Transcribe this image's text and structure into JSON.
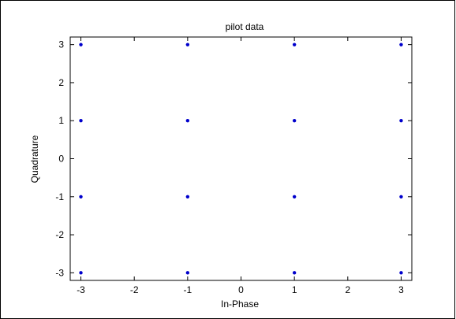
{
  "chart_data": {
    "type": "scatter",
    "title": "pilot data",
    "xlabel": "In-Phase",
    "ylabel": "Quadrature",
    "xlim": [
      -3.2,
      3.2
    ],
    "ylim": [
      -3.2,
      3.2
    ],
    "xticks": [
      -3,
      -2,
      -1,
      0,
      1,
      2,
      3
    ],
    "yticks": [
      -3,
      -2,
      -1,
      0,
      1,
      2,
      3
    ],
    "xtick_labels": [
      "-3",
      "-2",
      "-1",
      "0",
      "1",
      "2",
      "3"
    ],
    "ytick_labels": [
      "-3",
      "-2",
      "-1",
      "0",
      "1",
      "2",
      "3"
    ],
    "grid": false,
    "legend": "none",
    "marker": "dot",
    "series": [
      {
        "color": "#0000cc",
        "points": [
          {
            "x": -3,
            "y": 3
          },
          {
            "x": -1,
            "y": 3
          },
          {
            "x": 1,
            "y": 3
          },
          {
            "x": 3,
            "y": 3
          },
          {
            "x": -3,
            "y": 1
          },
          {
            "x": -1,
            "y": 1
          },
          {
            "x": 1,
            "y": 1
          },
          {
            "x": 3,
            "y": 1
          },
          {
            "x": -3,
            "y": -1
          },
          {
            "x": -1,
            "y": -1
          },
          {
            "x": 1,
            "y": -1
          },
          {
            "x": 3,
            "y": -1
          },
          {
            "x": -3,
            "y": -3
          },
          {
            "x": -1,
            "y": -3
          },
          {
            "x": 1,
            "y": -3
          },
          {
            "x": 3,
            "y": -3
          }
        ]
      }
    ]
  }
}
